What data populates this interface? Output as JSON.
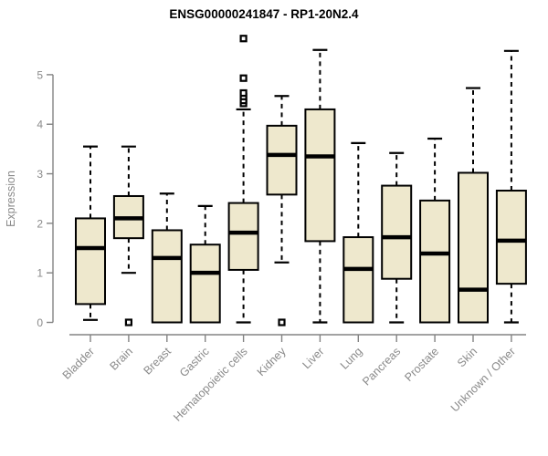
{
  "chart_data": {
    "type": "boxplot",
    "title": "ENSG00000241847 - RP1-20N2.4",
    "ylabel": "Expression",
    "ylim": [
      0,
      5.9
    ],
    "yticks": [
      0,
      1,
      2,
      3,
      4,
      5
    ],
    "grid": false,
    "legend": "none",
    "categories": [
      "Bladder",
      "Brain",
      "Breast",
      "Gastric",
      "Hematopoietic cells",
      "Kidney",
      "Liver",
      "Lung",
      "Pancreas",
      "Prostate",
      "Skin",
      "Unknown / Other"
    ],
    "boxes": [
      {
        "category": "Bladder",
        "whisker_low": 0.05,
        "q1": 0.37,
        "median": 1.5,
        "q3": 2.1,
        "whisker_high": 3.55,
        "outliers": []
      },
      {
        "category": "Brain",
        "whisker_low": 1.0,
        "q1": 1.7,
        "median": 2.1,
        "q3": 2.55,
        "whisker_high": 3.55,
        "outliers": [
          0.0
        ]
      },
      {
        "category": "Breast",
        "whisker_low": 0.0,
        "q1": 0.0,
        "median": 1.3,
        "q3": 1.86,
        "whisker_high": 2.6,
        "outliers": []
      },
      {
        "category": "Gastric",
        "whisker_low": 0.0,
        "q1": 0.0,
        "median": 1.0,
        "q3": 1.57,
        "whisker_high": 2.35,
        "outliers": []
      },
      {
        "category": "Hematopoietic cells",
        "whisker_low": 0.0,
        "q1": 1.06,
        "median": 1.81,
        "q3": 2.41,
        "whisker_high": 4.3,
        "outliers": [
          4.42,
          4.48,
          4.56,
          4.63,
          4.93,
          5.73
        ]
      },
      {
        "category": "Kidney",
        "whisker_low": 1.21,
        "q1": 2.58,
        "median": 3.38,
        "q3": 3.97,
        "whisker_high": 4.57,
        "outliers": [
          0.0
        ]
      },
      {
        "category": "Liver",
        "whisker_low": 0.0,
        "q1": 1.64,
        "median": 3.35,
        "q3": 4.3,
        "whisker_high": 5.5,
        "outliers": []
      },
      {
        "category": "Lung",
        "whisker_low": 0.0,
        "q1": 0.0,
        "median": 1.08,
        "q3": 1.72,
        "whisker_high": 3.62,
        "outliers": []
      },
      {
        "category": "Pancreas",
        "whisker_low": 0.0,
        "q1": 0.88,
        "median": 1.72,
        "q3": 2.76,
        "whisker_high": 3.42,
        "outliers": []
      },
      {
        "category": "Prostate",
        "whisker_low": 0.0,
        "q1": 0.0,
        "median": 1.39,
        "q3": 2.46,
        "whisker_high": 3.71,
        "outliers": []
      },
      {
        "category": "Skin",
        "whisker_low": 0.0,
        "q1": 0.0,
        "median": 0.66,
        "q3": 3.02,
        "whisker_high": 4.73,
        "outliers": []
      },
      {
        "category": "Unknown / Other",
        "whisker_low": 0.0,
        "q1": 0.78,
        "median": 1.65,
        "q3": 2.66,
        "whisker_high": 5.48,
        "outliers": []
      }
    ],
    "colors": {
      "box_fill": "#EEE8CD",
      "box_stroke": "#000000",
      "median": "#000000",
      "whisker": "#000000",
      "axis": "#838383",
      "axis_text": "#8a8a8a",
      "title": "#000000",
      "background": "#ffffff"
    }
  }
}
